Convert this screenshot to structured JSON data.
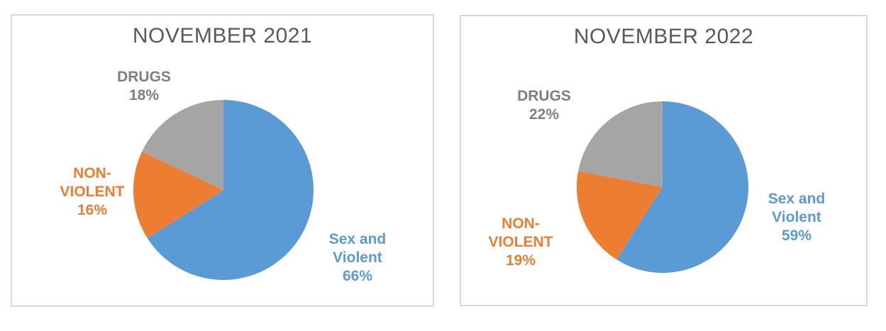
{
  "page": {
    "background_color": "#FFFFFF",
    "panel_border_color": "#D9D9D9"
  },
  "chart_data": [
    {
      "type": "pie",
      "title": "NOVEMBER 2021",
      "title_color": "#595959",
      "start_angle": "12-oclock",
      "direction": "clockwise",
      "legend_position": "none",
      "slices": [
        {
          "label": "Sex and Violent",
          "value_pct": 66,
          "color": "#5B9BD5",
          "label_lines": [
            "Sex and",
            "Violent",
            "66%"
          ],
          "label_color": "#5B9BD5"
        },
        {
          "label": "NON-VIOLENT",
          "value_pct": 16,
          "color": "#ED7D31",
          "label_lines": [
            "NON-",
            "VIOLENT",
            "16%"
          ],
          "label_color": "#ED7D31"
        },
        {
          "label": "DRUGS",
          "value_pct": 18,
          "color": "#A5A5A5",
          "label_lines": [
            "DRUGS",
            "18%"
          ],
          "label_color": "#7F7F7F"
        }
      ]
    },
    {
      "type": "pie",
      "title": "NOVEMBER 2022",
      "title_color": "#595959",
      "start_angle": "12-oclock",
      "direction": "clockwise",
      "legend_position": "none",
      "slices": [
        {
          "label": "Sex and Violent",
          "value_pct": 59,
          "color": "#5B9BD5",
          "label_lines": [
            "Sex and",
            "Violent",
            "59%"
          ],
          "label_color": "#5B9BD5"
        },
        {
          "label": "NON-VIOLENT",
          "value_pct": 19,
          "color": "#ED7D31",
          "label_lines": [
            "NON-",
            "VIOLENT",
            "19%"
          ],
          "label_color": "#ED7D31"
        },
        {
          "label": "DRUGS",
          "value_pct": 22,
          "color": "#A5A5A5",
          "label_lines": [
            "DRUGS",
            "22%"
          ],
          "label_color": "#7F7F7F"
        }
      ]
    }
  ]
}
